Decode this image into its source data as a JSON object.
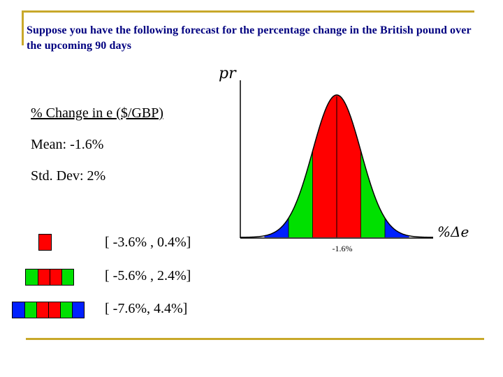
{
  "title": "Suppose you have the following forecast for the percentage change in the British pound over the upcoming 90 days",
  "legend": {
    "heading": "% Change in e ($/GBP)",
    "mean": "Mean: -1.6%",
    "stddev": "Std. Dev: 2%",
    "ranges": [
      {
        "label": "[ -3.6% , 0.4%]",
        "colors": [
          "red"
        ]
      },
      {
        "label": "[ -5.6% , 2.4%]",
        "colors": [
          "green",
          "red",
          "red",
          "green"
        ]
      },
      {
        "label": "[ -7.6%, 4.4%]",
        "colors": [
          "blue",
          "green",
          "red",
          "red",
          "green",
          "blue"
        ]
      }
    ]
  },
  "chart": {
    "ylabel": "pr",
    "xlabel": "%Δe",
    "mean_label": "-1.6%",
    "mean": -1.6,
    "std_dev": 2,
    "colors": {
      "red": "#ff0000",
      "green": "#00e000",
      "blue": "#0020ff"
    }
  }
}
